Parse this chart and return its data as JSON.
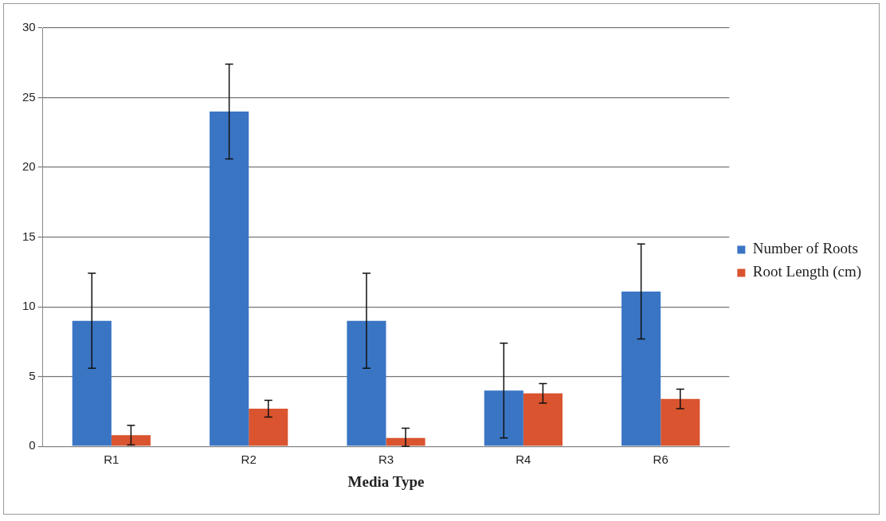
{
  "chart_data": {
    "type": "bar",
    "xlabel": "Media Type",
    "categories": [
      "R1",
      "R2",
      "R3",
      "R4",
      "R6"
    ],
    "series": [
      {
        "name": "Number of Roots",
        "color": "#3a75c4",
        "values": [
          9,
          24,
          9,
          4,
          11.1
        ],
        "errors": [
          3.4,
          3.4,
          3.4,
          3.4,
          3.4
        ]
      },
      {
        "name": "Root Length (cm)",
        "color": "#d9542f",
        "values": [
          0.8,
          2.7,
          0.6,
          3.8,
          3.4
        ],
        "errors": [
          0.7,
          0.6,
          [
            0,
            1.3
          ],
          0.7,
          0.7
        ]
      }
    ],
    "ylim": [
      0,
      30
    ],
    "yticks": [
      0,
      5,
      10,
      15,
      20,
      25,
      30
    ],
    "grid": "y",
    "legend": "right"
  }
}
